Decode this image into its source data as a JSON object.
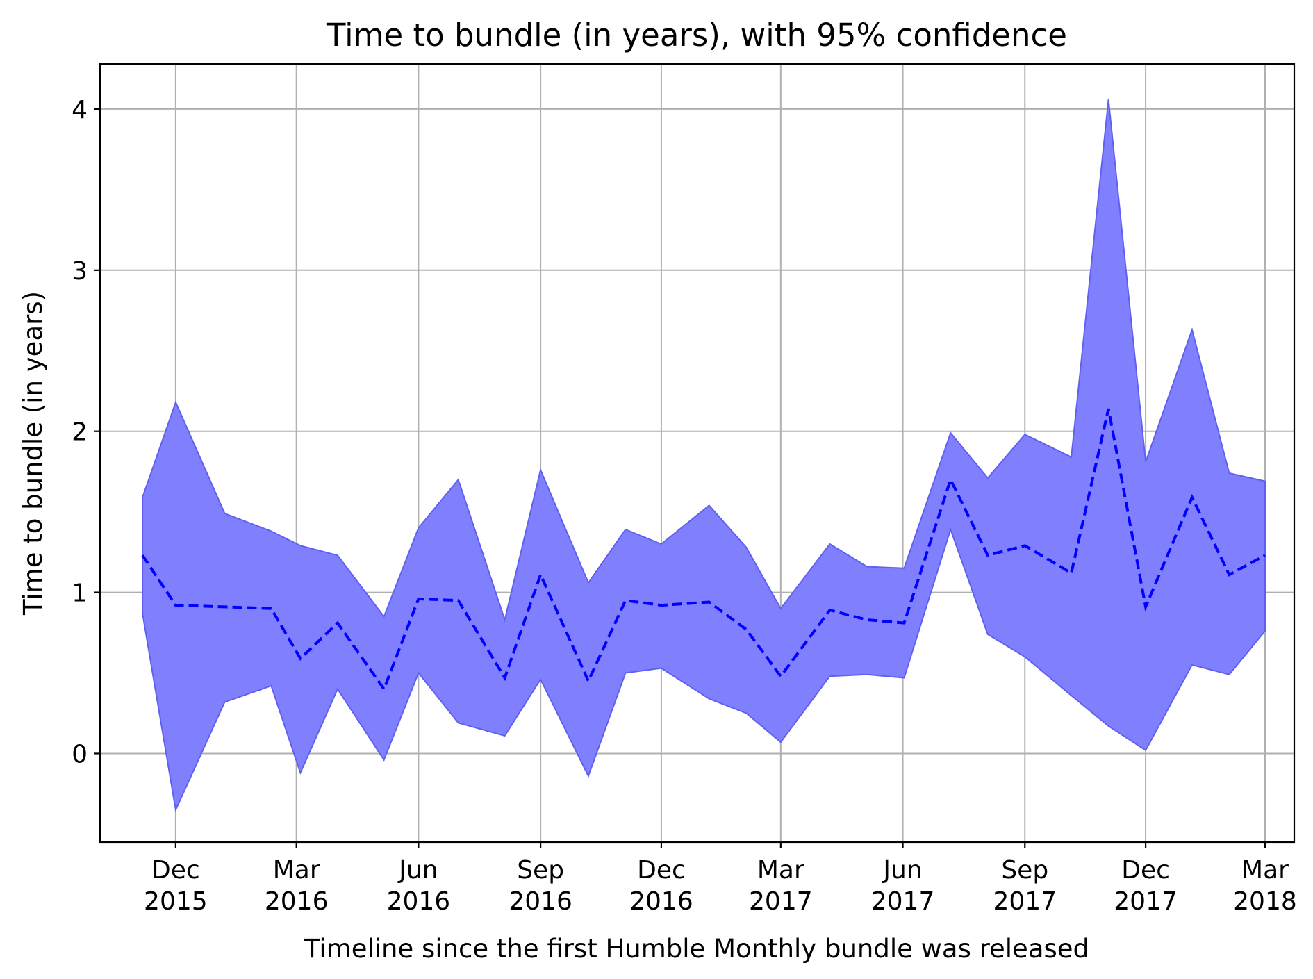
{
  "chart_data": {
    "type": "line",
    "title": "Time to bundle (in years), with 95% confidence",
    "xlabel": "Timeline since the first Humble Monthly bundle was released",
    "ylabel": "Time to bundle (in years)",
    "ylim": [
      -0.55,
      4.28
    ],
    "yticks": [
      0,
      1,
      2,
      3,
      4
    ],
    "xlim": [
      "2015-10-05",
      "2018-03-23"
    ],
    "xticks": [
      {
        "date": "2015-12-01",
        "label1": "Dec",
        "label2": "2015"
      },
      {
        "date": "2016-03-01",
        "label1": "Mar",
        "label2": "2016"
      },
      {
        "date": "2016-06-01",
        "label1": "Jun",
        "label2": "2016"
      },
      {
        "date": "2016-09-01",
        "label1": "Sep",
        "label2": "2016"
      },
      {
        "date": "2016-12-01",
        "label1": "Dec",
        "label2": "2016"
      },
      {
        "date": "2017-03-01",
        "label1": "Mar",
        "label2": "2017"
      },
      {
        "date": "2017-06-01",
        "label1": "Jun",
        "label2": "2017"
      },
      {
        "date": "2017-09-01",
        "label1": "Sep",
        "label2": "2017"
      },
      {
        "date": "2017-12-01",
        "label1": "Dec",
        "label2": "2017"
      },
      {
        "date": "2018-03-01",
        "label1": "Mar",
        "label2": "2018"
      }
    ],
    "grid": true,
    "colors": {
      "line": "#0000ff",
      "band": "#8080ff",
      "band_edge": "#6060f0"
    },
    "series": [
      {
        "style": "dashed",
        "x": [
          "2015-11-06",
          "2015-12-01",
          "2016-01-07",
          "2016-02-11",
          "2016-03-04",
          "2016-04-01",
          "2016-05-06",
          "2016-06-01",
          "2016-07-01",
          "2016-08-05",
          "2016-09-01",
          "2016-10-07",
          "2016-11-04",
          "2016-12-01",
          "2017-01-06",
          "2017-02-03",
          "2017-03-01",
          "2017-04-07",
          "2017-05-05",
          "2017-06-02",
          "2017-07-07",
          "2017-08-04",
          "2017-09-01",
          "2017-10-06",
          "2017-11-03",
          "2017-12-01",
          "2018-01-05",
          "2018-02-02",
          "2018-03-01"
        ],
        "y": [
          1.23,
          0.92,
          0.91,
          0.9,
          0.59,
          0.81,
          0.4,
          0.96,
          0.95,
          0.47,
          1.11,
          0.45,
          0.95,
          0.92,
          0.94,
          0.77,
          0.48,
          0.89,
          0.83,
          0.81,
          1.7,
          1.23,
          1.29,
          1.12,
          2.14,
          0.91,
          1.59,
          1.11,
          1.23
        ],
        "lower": [
          0.87,
          -0.35,
          0.32,
          0.42,
          -0.12,
          0.4,
          -0.04,
          0.5,
          0.19,
          0.11,
          0.46,
          -0.14,
          0.5,
          0.53,
          0.34,
          0.25,
          0.07,
          0.48,
          0.49,
          0.47,
          1.39,
          0.74,
          0.6,
          0.36,
          0.17,
          0.02,
          0.55,
          0.49,
          0.76
        ],
        "upper": [
          1.59,
          2.18,
          1.49,
          1.38,
          1.29,
          1.23,
          0.85,
          1.4,
          1.7,
          0.83,
          1.76,
          1.06,
          1.39,
          1.3,
          1.54,
          1.28,
          0.9,
          1.3,
          1.16,
          1.15,
          1.99,
          1.71,
          1.98,
          1.84,
          4.06,
          1.81,
          2.63,
          1.74,
          1.69
        ]
      }
    ]
  }
}
